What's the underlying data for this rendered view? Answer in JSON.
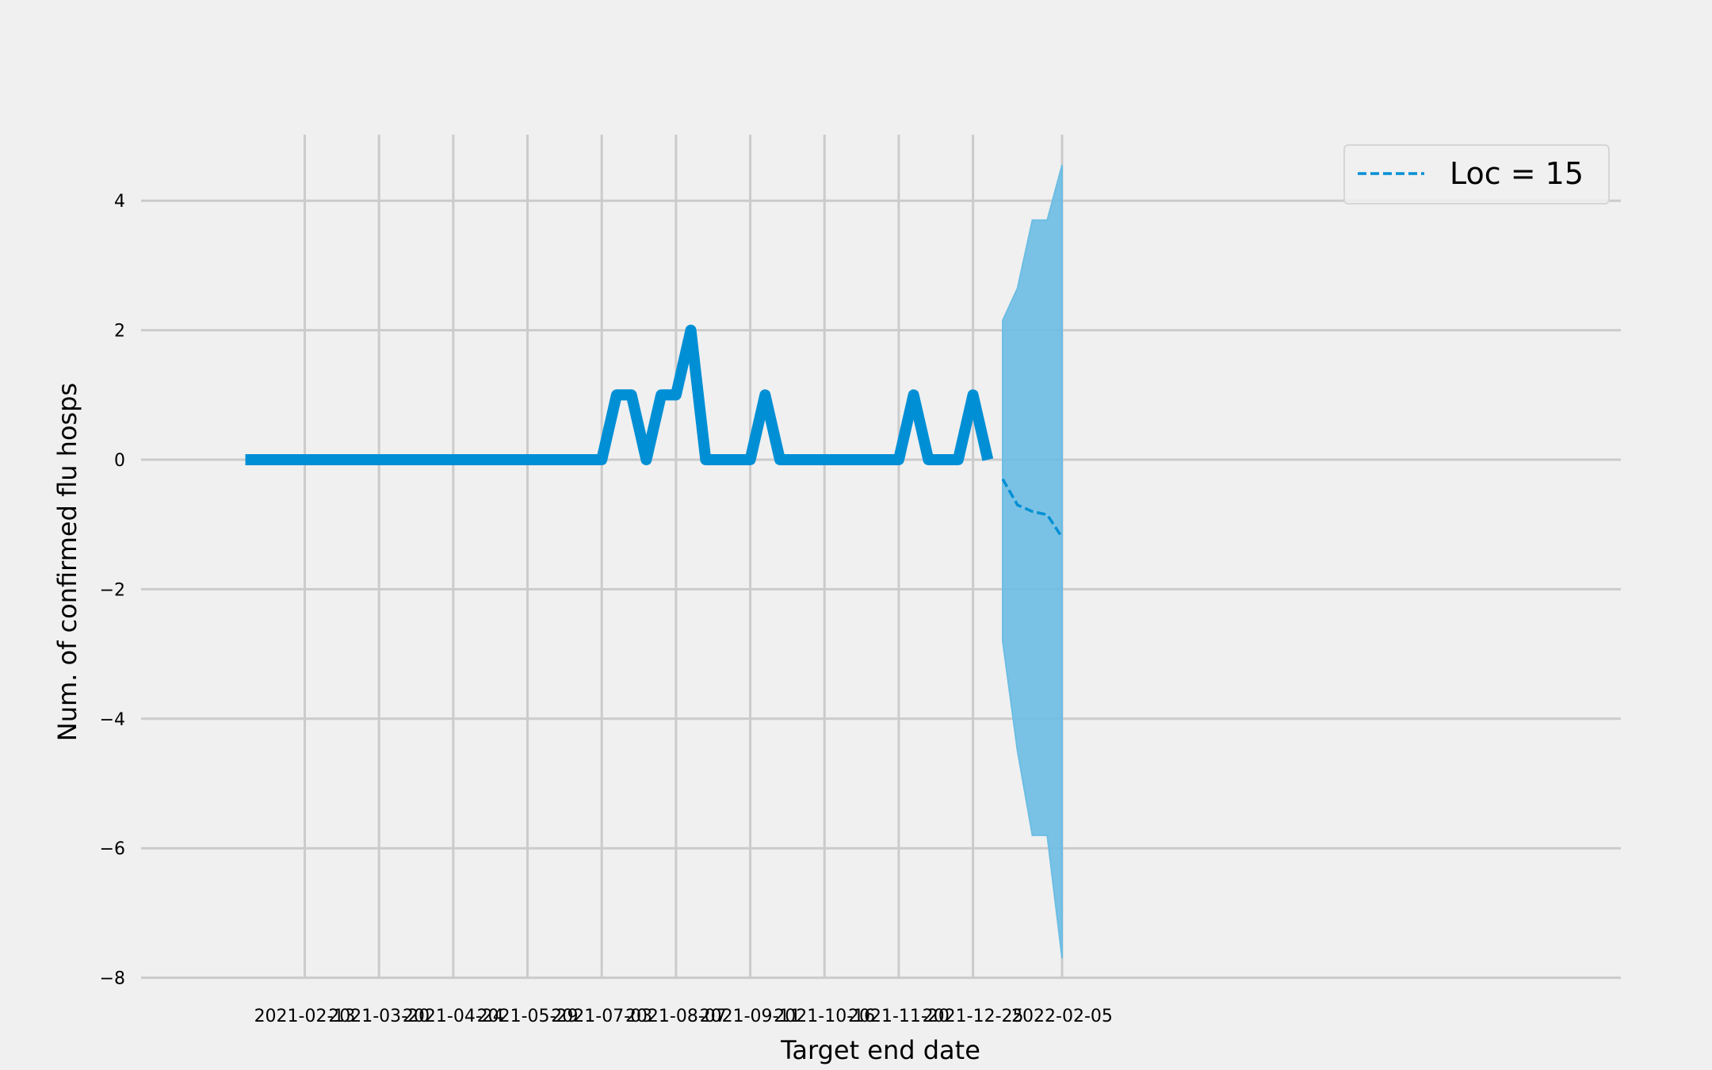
{
  "chart_data": {
    "type": "line",
    "title": "",
    "xlabel": "Target end date",
    "ylabel": "Num. of confirmed flu hosps",
    "ylim": [
      -8,
      5
    ],
    "yticks": [
      -8,
      -6,
      -4,
      -2,
      0,
      2,
      4
    ],
    "xticks": [
      "2021-02-13",
      "2021-03-20",
      "2021-04-24",
      "2021-05-29",
      "2021-07-03",
      "2021-08-07",
      "2021-09-11",
      "2021-10-16",
      "2021-11-20",
      "2021-12-25",
      "2022-02-05"
    ],
    "xlim": [
      "2021-01-14",
      "2022-02-22"
    ],
    "grid": true,
    "legend_position": "top-right",
    "colors": {
      "observed": "#008fd5",
      "forecast": "#008fd5",
      "interval": "#6cbde3",
      "background": "#f0f0f0",
      "grid": "#cbcbcb"
    },
    "series": [
      {
        "kind": "observed",
        "style": "solid",
        "x": [
          "2021-01-16",
          "2021-01-23",
          "2021-01-30",
          "2021-02-06",
          "2021-02-13",
          "2021-02-20",
          "2021-02-27",
          "2021-03-06",
          "2021-03-13",
          "2021-03-20",
          "2021-03-27",
          "2021-04-03",
          "2021-04-10",
          "2021-04-17",
          "2021-04-24",
          "2021-05-01",
          "2021-05-08",
          "2021-05-15",
          "2021-05-22",
          "2021-05-29",
          "2021-06-05",
          "2021-06-12",
          "2021-06-19",
          "2021-06-26",
          "2021-07-03",
          "2021-07-10",
          "2021-07-17",
          "2021-07-24",
          "2021-07-31",
          "2021-08-07",
          "2021-08-14",
          "2021-08-21",
          "2021-08-28",
          "2021-09-04",
          "2021-09-11",
          "2021-09-18",
          "2021-09-25",
          "2021-10-02",
          "2021-10-09",
          "2021-10-16",
          "2021-10-23",
          "2021-10-30",
          "2021-11-06",
          "2021-11-13",
          "2021-11-20",
          "2021-11-27",
          "2021-12-04",
          "2021-12-11",
          "2021-12-18",
          "2021-12-25",
          "2022-01-01"
        ],
        "values": [
          0,
          0,
          0,
          0,
          0,
          0,
          0,
          0,
          0,
          0,
          0,
          0,
          0,
          0,
          0,
          0,
          0,
          0,
          0,
          0,
          0,
          0,
          0,
          0,
          0,
          1,
          1,
          0,
          1,
          1,
          2,
          0,
          0,
          0,
          0,
          1,
          0,
          0,
          0,
          0,
          0,
          0,
          0,
          0,
          0,
          1,
          0,
          0,
          0,
          1,
          0
        ]
      },
      {
        "name": "Loc = 15",
        "kind": "forecast",
        "style": "dashed",
        "x": [
          "2022-01-08",
          "2022-01-15",
          "2022-01-22",
          "2022-01-29",
          "2022-02-05"
        ],
        "values": [
          -0.3,
          -0.7,
          -0.8,
          -0.85,
          -1.2
        ],
        "lower": [
          -2.8,
          -4.5,
          -5.8,
          -5.8,
          -7.7
        ],
        "upper": [
          2.15,
          2.65,
          3.7,
          3.7,
          4.55
        ]
      }
    ]
  }
}
